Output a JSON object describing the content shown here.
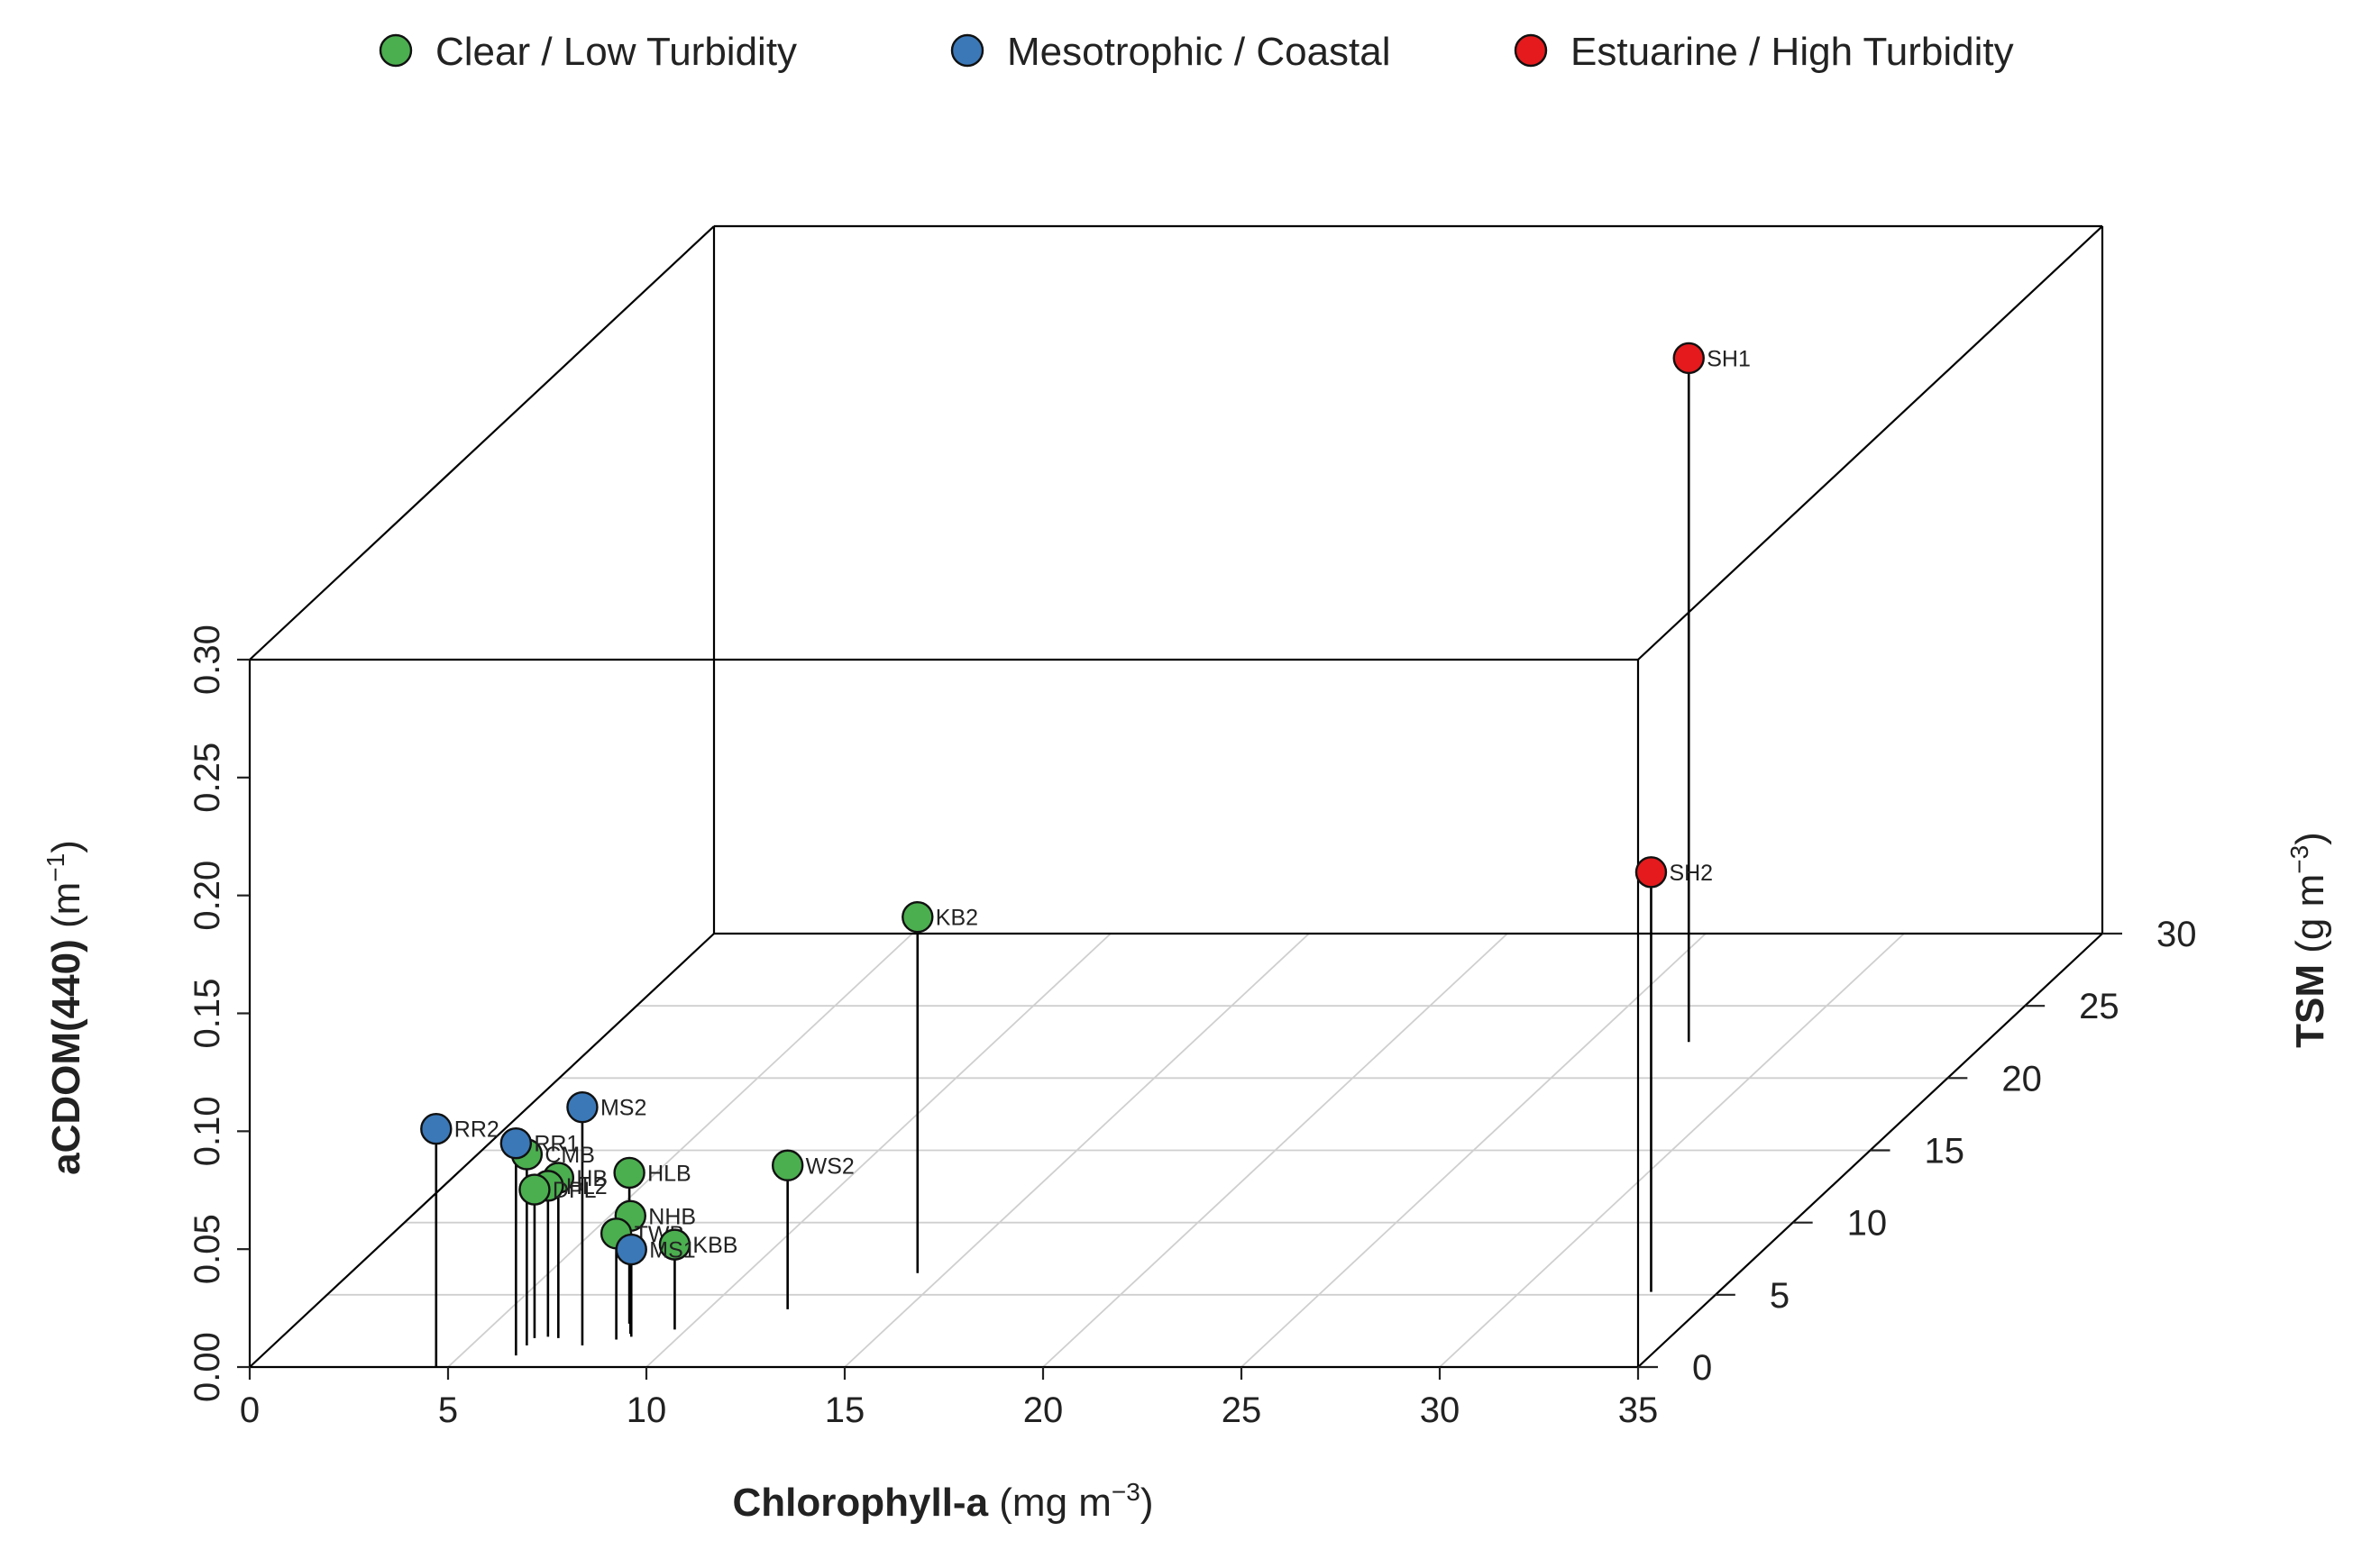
{
  "chart_data": {
    "type": "scatter3d",
    "x": {
      "label": "Chlorophyll-a",
      "unit": "(mg m",
      "unit_sup": "−3",
      "unit_end": ")",
      "range": [
        0,
        35
      ],
      "ticks": [
        "0",
        "5",
        "10",
        "15",
        "20",
        "25",
        "30",
        "35"
      ]
    },
    "y": {
      "label": "TSM",
      "unit": "(g m",
      "unit_sup": "−3",
      "unit_end": ")",
      "range": [
        0,
        30
      ],
      "ticks": [
        "0",
        "5",
        "10",
        "15",
        "20",
        "25",
        "30"
      ]
    },
    "z": {
      "label": "aCDOM(440)",
      "unit": "(m",
      "unit_sup": "−1",
      "unit_end": ")",
      "range": [
        0,
        0.3
      ],
      "ticks": [
        "0.00",
        "0.05",
        "0.10",
        "0.15",
        "0.20",
        "0.25",
        "0.30"
      ]
    },
    "legend": [
      {
        "name": "Clear / Low Turbidity",
        "color": "#4bae4f"
      },
      {
        "name": "Mesotrophic / Coastal",
        "color": "#3a78b8"
      },
      {
        "name": "Estuarine / High Turbidity",
        "color": "#e41a1c"
      }
    ],
    "points": [
      {
        "label": "CMB",
        "group": 0,
        "chl": 6.4,
        "tsm": 1.5,
        "cdom": 0.081
      },
      {
        "label": "HB",
        "group": 0,
        "chl": 7.0,
        "tsm": 2.0,
        "cdom": 0.068
      },
      {
        "label": "HL2",
        "group": 0,
        "chl": 6.7,
        "tsm": 2.1,
        "cdom": 0.064
      },
      {
        "label": "DPL",
        "group": 0,
        "chl": 6.4,
        "tsm": 2.0,
        "cdom": 0.063
      },
      {
        "label": "HLB",
        "group": 0,
        "chl": 8.4,
        "tsm": 3.0,
        "cdom": 0.064
      },
      {
        "label": "NHB",
        "group": 0,
        "chl": 8.7,
        "tsm": 2.3,
        "cdom": 0.05
      },
      {
        "label": "TWB",
        "group": 0,
        "chl": 8.5,
        "tsm": 1.9,
        "cdom": 0.045
      },
      {
        "label": "KBB",
        "group": 0,
        "chl": 9.7,
        "tsm": 2.6,
        "cdom": 0.036
      },
      {
        "label": "WS2",
        "group": 0,
        "chl": 12.0,
        "tsm": 4.0,
        "cdom": 0.061
      },
      {
        "label": "KB2",
        "group": 0,
        "chl": 14.3,
        "tsm": 6.5,
        "cdom": 0.151
      },
      {
        "label": "RR2",
        "group": 1,
        "chl": 4.7,
        "tsm": 0.0,
        "cdom": 0.101
      },
      {
        "label": "RR1",
        "group": 1,
        "chl": 6.4,
        "tsm": 0.8,
        "cdom": 0.09
      },
      {
        "label": "MS2",
        "group": 1,
        "chl": 7.8,
        "tsm": 1.5,
        "cdom": 0.101
      },
      {
        "label": "MS1",
        "group": 1,
        "chl": 8.8,
        "tsm": 2.1,
        "cdom": 0.037
      },
      {
        "label": "SH1",
        "group": 2,
        "chl": 27.5,
        "tsm": 22.5,
        "cdom": 0.29
      },
      {
        "label": "SH2",
        "group": 2,
        "chl": 33.3,
        "tsm": 5.2,
        "cdom": 0.178
      }
    ]
  }
}
